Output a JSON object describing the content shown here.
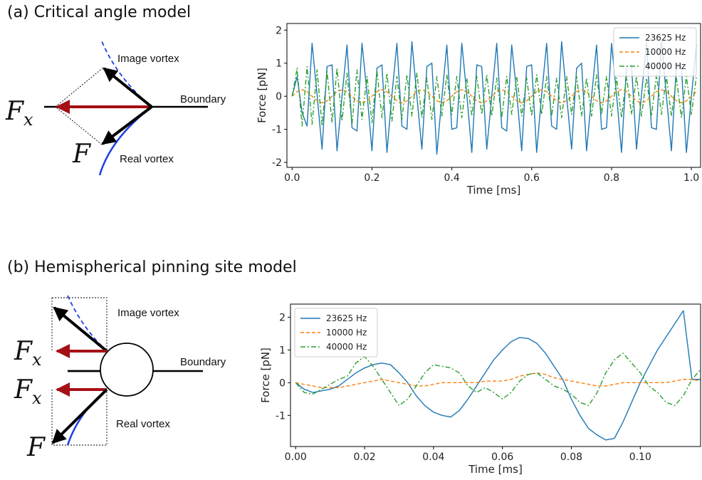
{
  "panels": [
    {
      "title": "(a) Critical angle model",
      "image_label": "Image vortex",
      "boundary_label": "Boundary",
      "real_label": "Real vortex",
      "force_x": {
        "symbol": "F",
        "subscript": "x"
      },
      "force": "F"
    },
    {
      "title": "(b) Hemispherical pinning site model",
      "image_label": "Image vortex",
      "boundary_label": "Boundary",
      "real_label": "Real vortex",
      "force_x": {
        "symbol": "F",
        "subscript": "x"
      },
      "force_x_lower": {
        "symbol": "F",
        "subscript": "x"
      },
      "force": "F"
    }
  ],
  "chart_data": [
    {
      "type": "line",
      "xlabel": "Time [ms]",
      "ylabel": "Force [pN]",
      "legend": "upper right",
      "xlim": [
        -0.013,
        1.023
      ],
      "ylim": [
        -2.15,
        2.2
      ],
      "xticks": [
        {
          "value": 0,
          "label": "0.0"
        },
        {
          "value": 0.2,
          "label": "0.2"
        },
        {
          "value": 0.4,
          "label": "0.4"
        },
        {
          "value": 0.6,
          "label": "0.6"
        },
        {
          "value": 0.8,
          "label": "0.8"
        },
        {
          "value": 1,
          "label": "1.0"
        }
      ],
      "yticks": [
        -2,
        -1,
        0,
        1,
        2
      ],
      "x": [
        0,
        0.0125,
        0.025,
        0.0375,
        0.05,
        0.0625,
        0.075,
        0.0875,
        0.1,
        0.1125,
        0.125,
        0.1375,
        0.15,
        0.1625,
        0.175,
        0.1875,
        0.2,
        0.2125,
        0.225,
        0.2375,
        0.25,
        0.2625,
        0.275,
        0.2875,
        0.3,
        0.3125,
        0.325,
        0.3375,
        0.35,
        0.3625,
        0.375,
        0.3875,
        0.4,
        0.4125,
        0.425,
        0.4375,
        0.45,
        0.4625,
        0.475,
        0.4875,
        0.5,
        0.5125,
        0.525,
        0.5375,
        0.55,
        0.5625,
        0.575,
        0.5875,
        0.6,
        0.6125,
        0.625,
        0.6375,
        0.65,
        0.6625,
        0.675,
        0.6875,
        0.7,
        0.7125,
        0.725,
        0.7375,
        0.75,
        0.7625,
        0.775,
        0.7875,
        0.8,
        0.8125,
        0.825,
        0.8375,
        0.85,
        0.8625,
        0.875,
        0.8875,
        0.9,
        0.9125,
        0.925,
        0.9375,
        0.95,
        0.9625,
        0.975,
        0.9875,
        1,
        1.0125
      ],
      "series": [
        {
          "name": "23625 Hz",
          "color": "#1f77b4",
          "style": "solid",
          "values": [
            0,
            0.6,
            -0.5,
            -0.9,
            1.6,
            0.05,
            -1.6,
            0.9,
            0.95,
            -1.65,
            0,
            1.55,
            -0.95,
            -1.05,
            1.6,
            0.1,
            -1.65,
            0.85,
            0.95,
            -1.7,
            0.05,
            1.6,
            -0.9,
            -1,
            1.65,
            0,
            -1.6,
            0.9,
            1,
            -1.75,
            -0.05,
            1.55,
            -1,
            -0.95,
            1.6,
            0.05,
            -1.7,
            0.95,
            0.9,
            -1.6,
            0,
            1.6,
            -0.95,
            -1.05,
            1.55,
            0.1,
            -1.65,
            0.9,
            0.95,
            -1.7,
            0.05,
            1.6,
            -0.9,
            -1,
            1.65,
            0,
            -1.6,
            0.85,
            1,
            -1.65,
            0,
            1.55,
            -1,
            -0.95,
            1.6,
            0.05,
            -1.7,
            0.9,
            0.95,
            -1.6,
            0.05,
            1.6,
            -0.95,
            -1,
            1.65,
            0,
            -1.65,
            0.95,
            0.9,
            -1.7,
            0,
            1.55
          ]
        },
        {
          "name": "10000 Hz",
          "color": "#ff7f0e",
          "style": "dashed",
          "values": [
            0,
            0.14,
            0.2,
            0.14,
            0,
            -0.14,
            -0.2,
            -0.14,
            0,
            0.14,
            0.2,
            0.14,
            0,
            -0.14,
            -0.2,
            -0.14,
            0,
            0.14,
            0.2,
            0.14,
            0,
            -0.14,
            -0.2,
            -0.14,
            0,
            0.14,
            0.2,
            0.14,
            0,
            -0.14,
            -0.2,
            -0.14,
            0,
            0.14,
            0.2,
            0.14,
            0,
            -0.14,
            -0.2,
            -0.14,
            0,
            0.14,
            0.2,
            0.14,
            0,
            -0.14,
            -0.2,
            -0.14,
            0,
            0.14,
            0.2,
            0.14,
            0,
            -0.14,
            -0.2,
            -0.14,
            0,
            0.14,
            0.2,
            0.14,
            0,
            -0.14,
            -0.2,
            -0.14,
            0,
            0.14,
            0.2,
            0.14,
            0,
            -0.14,
            -0.2,
            -0.14,
            0,
            0.14,
            0.2,
            0.14,
            0,
            -0.14,
            -0.2,
            -0.14,
            0,
            0.14
          ]
        },
        {
          "name": "40000 Hz",
          "color": "#2ca02c",
          "style": "dashdot",
          "values": [
            0,
            0.85,
            -0.9,
            0.9,
            -0.85,
            0.8,
            -0.9,
            0.75,
            -0.8,
            0.85,
            -0.75,
            0.7,
            -0.85,
            0.8,
            -0.7,
            0.6,
            -0.8,
            0.75,
            -0.65,
            0.7,
            -0.75,
            0.6,
            -0.7,
            0.65,
            -0.6,
            0.7,
            -0.65,
            0.55,
            -0.7,
            0.6,
            -0.6,
            0.65,
            -0.55,
            0.6,
            -0.65,
            0.55,
            -0.6,
            0.6,
            -0.55,
            0.65,
            -0.6,
            0.55,
            -0.65,
            0.6,
            -0.55,
            0.6,
            -0.6,
            0.55,
            -0.6,
            0.65,
            -0.55,
            0.6,
            -0.6,
            0.55,
            -0.65,
            0.6,
            -0.55,
            0.6,
            -0.6,
            0.55,
            -0.6,
            0.65,
            -0.55,
            0.6,
            -0.6,
            0.55,
            -0.65,
            0.6,
            -0.55,
            0.6,
            -0.6,
            0.55,
            -0.6,
            0.65,
            -0.55,
            0.6,
            -0.6,
            0.55,
            -0.65,
            0.6,
            -0.55,
            0.6
          ]
        }
      ]
    },
    {
      "type": "line",
      "xlabel": "Time [ms]",
      "ylabel": "Force [pN]",
      "legend": "upper left",
      "xlim": [
        -0.0015,
        0.1175
      ],
      "ylim": [
        -1.95,
        2.4
      ],
      "xticks": [
        {
          "value": 0,
          "label": "0.00"
        },
        {
          "value": 0.02,
          "label": "0.02"
        },
        {
          "value": 0.04,
          "label": "0.04"
        },
        {
          "value": 0.06,
          "label": "0.06"
        },
        {
          "value": 0.08,
          "label": "0.08"
        },
        {
          "value": 0.1,
          "label": "0.10"
        }
      ],
      "yticks": [
        -1,
        0,
        1,
        2
      ],
      "x": [
        0,
        0.0025,
        0.005,
        0.0075,
        0.01,
        0.0125,
        0.015,
        0.0175,
        0.02,
        0.0225,
        0.025,
        0.0275,
        0.03,
        0.0325,
        0.035,
        0.0375,
        0.04,
        0.0425,
        0.045,
        0.0475,
        0.05,
        0.0525,
        0.055,
        0.0575,
        0.06,
        0.0625,
        0.065,
        0.0675,
        0.07,
        0.0725,
        0.075,
        0.0775,
        0.08,
        0.0825,
        0.085,
        0.0875,
        0.09,
        0.0925,
        0.095,
        0.0975,
        0.1,
        0.1025,
        0.105,
        0.1075,
        0.11,
        0.1125,
        0.115,
        0.1175
      ],
      "series": [
        {
          "name": "23625 Hz",
          "color": "#1f77b4",
          "style": "solid",
          "values": [
            0,
            -0.2,
            -0.3,
            -0.25,
            -0.2,
            -0.1,
            0.1,
            0.3,
            0.45,
            0.55,
            0.6,
            0.55,
            0.3,
            0,
            -0.4,
            -0.7,
            -0.9,
            -1,
            -1.05,
            -0.85,
            -0.5,
            -0.1,
            0.3,
            0.7,
            1,
            1.25,
            1.38,
            1.35,
            1.2,
            0.9,
            0.5,
            0.1,
            -0.5,
            -1,
            -1.4,
            -1.6,
            -1.75,
            -1.7,
            -1.2,
            -0.6,
            0,
            0.5,
            1,
            1.4,
            1.8,
            2.2,
            0.1,
            0.1
          ]
        },
        {
          "name": "10000 Hz",
          "color": "#ff7f0e",
          "style": "dashed",
          "values": [
            0,
            -0.05,
            -0.1,
            -0.15,
            -0.15,
            -0.15,
            -0.1,
            -0.05,
            0,
            0.05,
            0.1,
            0.05,
            0,
            -0.05,
            -0.1,
            -0.1,
            -0.05,
            0,
            0,
            0,
            0,
            0,
            0.05,
            0.05,
            0.05,
            0.1,
            0.2,
            0.25,
            0.3,
            0.25,
            0.15,
            0.1,
            0.05,
            0,
            -0.05,
            -0.1,
            -0.1,
            -0.05,
            0,
            0,
            0,
            0,
            0,
            0,
            0.05,
            0.1,
            0.1,
            0.05
          ]
        },
        {
          "name": "40000 Hz",
          "color": "#2ca02c",
          "style": "dashdot",
          "values": [
            0,
            -0.3,
            -0.35,
            -0.2,
            -0.05,
            0.1,
            0.2,
            0.6,
            0.8,
            0.5,
            0.1,
            -0.3,
            -0.7,
            -0.5,
            -0.1,
            0.3,
            0.55,
            0.5,
            0.45,
            0.3,
            -0.1,
            -0.3,
            -0.15,
            -0.3,
            -0.5,
            -0.3,
            0.05,
            0.25,
            0.3,
            0.1,
            -0.1,
            -0.2,
            -0.35,
            -0.6,
            -0.7,
            -0.3,
            0.3,
            0.7,
            0.9,
            0.6,
            0.3,
            -0.1,
            -0.3,
            -0.6,
            -0.7,
            -0.4,
            0.1,
            0.4
          ]
        }
      ]
    }
  ]
}
